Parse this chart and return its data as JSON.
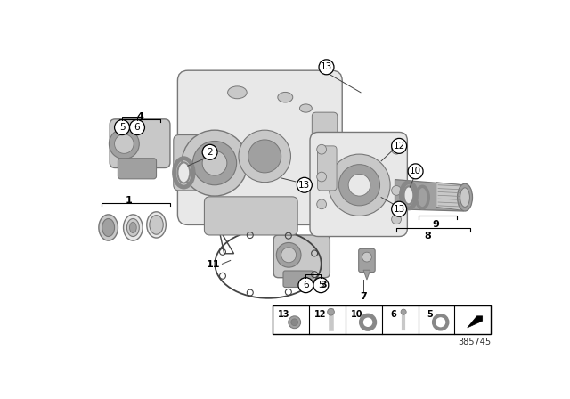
{
  "bg_color": "#ffffff",
  "part_number": "385745",
  "gray_light": "#e8e8e8",
  "gray_mid": "#c8c8c8",
  "gray_dark": "#a0a0a0",
  "gray_darker": "#888888",
  "edge_color": "#777777",
  "line_color": "#444444"
}
